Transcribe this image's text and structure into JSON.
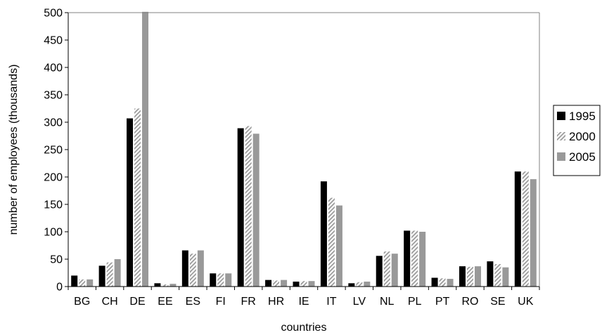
{
  "chart_data": {
    "type": "bar",
    "xlabel": "countries",
    "ylabel": "number of employees (thousands)",
    "ylim": [
      0,
      500
    ],
    "yticks": [
      "0",
      "50",
      "100",
      "150",
      "200",
      "250",
      "300",
      "350",
      "400",
      "450",
      "500"
    ],
    "grid": false,
    "legend_position": "right",
    "categories": [
      "BG",
      "CH",
      "DE",
      "EE",
      "ES",
      "FI",
      "FR",
      "HR",
      "IE",
      "IT",
      "LV",
      "NL",
      "PL",
      "PT",
      "RO",
      "SE",
      "UK"
    ],
    "series": [
      {
        "name": "1995",
        "color": "#000000",
        "pattern": "solid",
        "values": [
          20,
          38,
          307,
          6,
          66,
          24,
          289,
          12,
          9,
          192,
          6,
          56,
          102,
          16,
          37,
          46,
          210
        ]
      },
      {
        "name": "2000",
        "color": "#9a9a9a",
        "pattern": "hatched",
        "values": [
          13,
          44,
          325,
          4,
          60,
          24,
          293,
          11,
          10,
          162,
          8,
          64,
          102,
          15,
          36,
          41,
          210
        ]
      },
      {
        "name": "2005",
        "color": "#999999",
        "pattern": "solid",
        "values": [
          13,
          50,
          505,
          5,
          66,
          24,
          279,
          12,
          10,
          148,
          9,
          60,
          100,
          14,
          37,
          35,
          196
        ]
      }
    ]
  }
}
